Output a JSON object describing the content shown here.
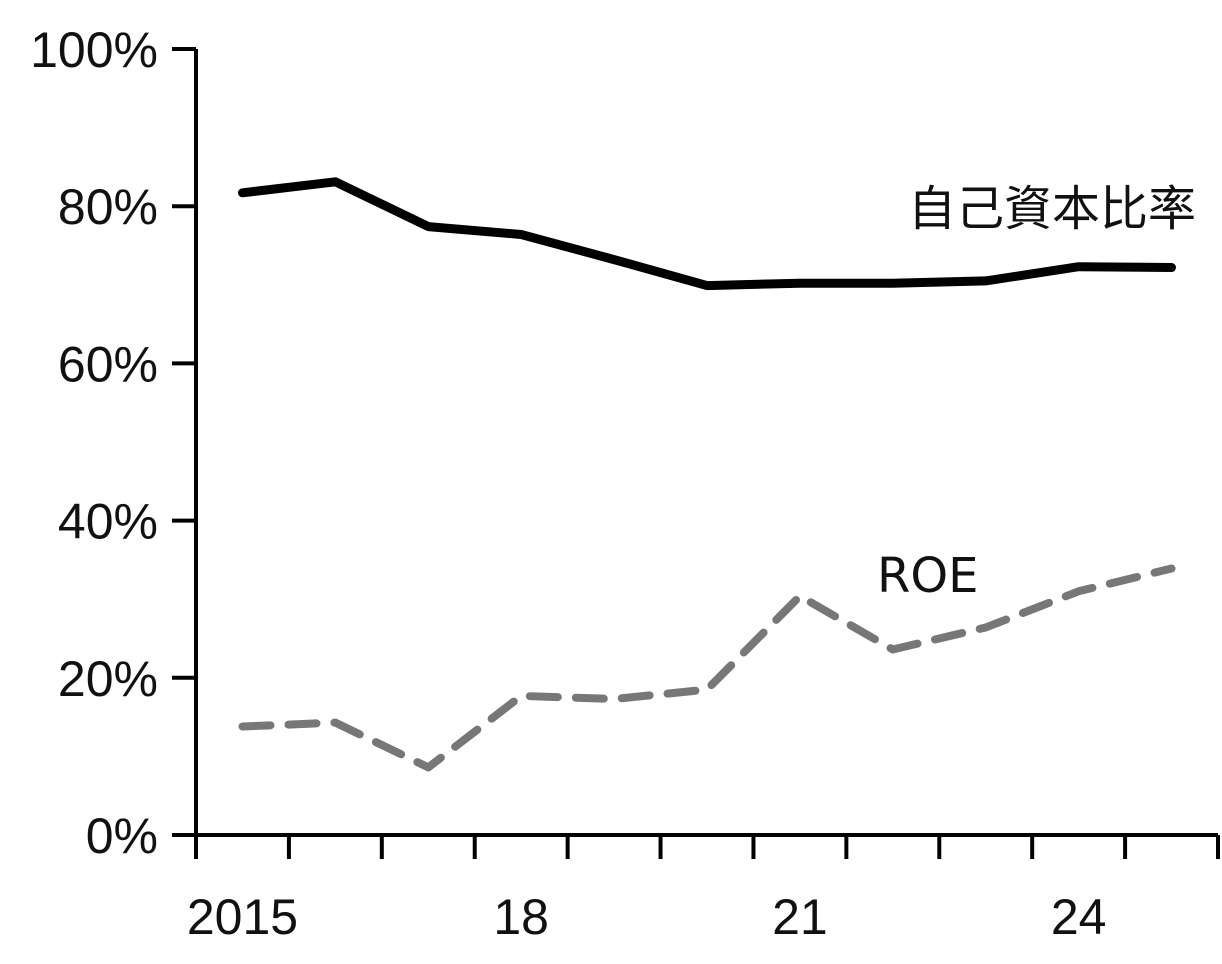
{
  "chart_data": {
    "type": "line",
    "x": [
      2015,
      2016,
      2017,
      2018,
      2019,
      2020,
      2021,
      2022,
      2023,
      2024,
      2025
    ],
    "xlim": [
      2014.5,
      2025.5
    ],
    "ylim": [
      0,
      100
    ],
    "y_ticks": [
      0,
      20,
      40,
      60,
      80,
      100
    ],
    "y_tick_labels": [
      "0%",
      "20%",
      "40%",
      "60%",
      "80%",
      "100%"
    ],
    "x_tick_labels": [
      {
        "x": 2015,
        "label": "2015"
      },
      {
        "x": 2018,
        "label": "18"
      },
      {
        "x": 2021,
        "label": "21"
      },
      {
        "x": 2024,
        "label": "24"
      }
    ],
    "grid": false,
    "series": [
      {
        "name": "自己資本比率",
        "color": "#000000",
        "style": "solid",
        "values": [
          81.7,
          83.1,
          77.4,
          76.4,
          73.2,
          69.9,
          70.2,
          70.2,
          70.5,
          72.3,
          72.2
        ]
      },
      {
        "name": "ROE",
        "color": "#777777",
        "style": "dashed",
        "values": [
          13.8,
          14.3,
          8.6,
          17.7,
          17.3,
          18.5,
          30.4,
          23.6,
          26.4,
          31.0,
          33.9
        ]
      }
    ]
  }
}
